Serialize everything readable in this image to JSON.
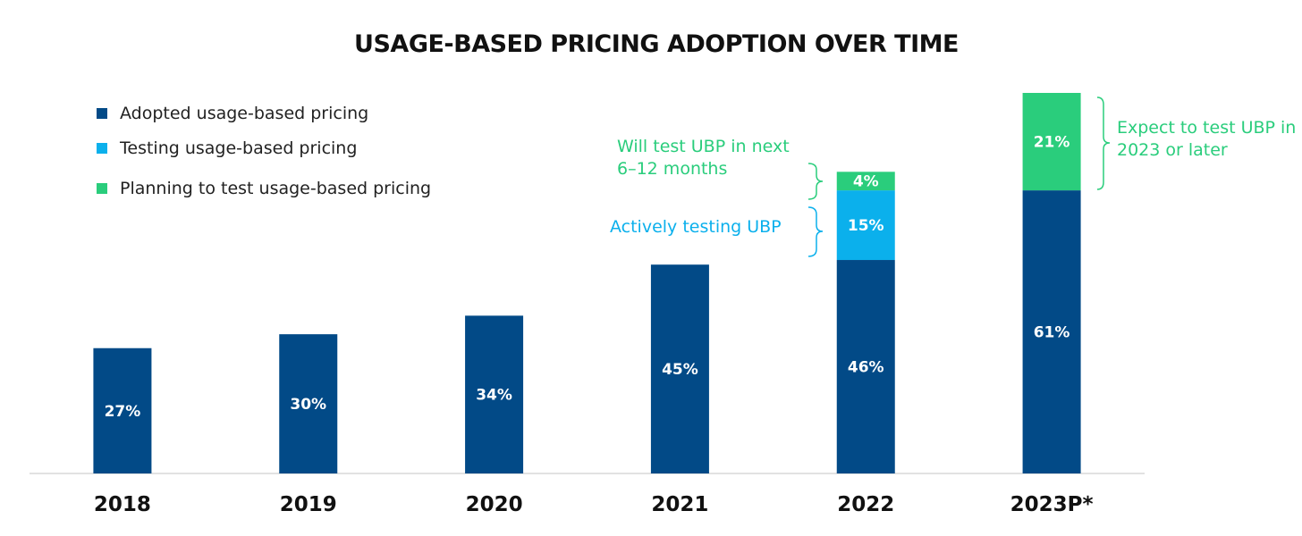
{
  "chart_data": {
    "type": "bar",
    "stacked": true,
    "title": "USAGE-BASED PRICING ADOPTION OVER TIME",
    "categories": [
      "2018",
      "2019",
      "2020",
      "2021",
      "2022",
      "2023P*"
    ],
    "series": [
      {
        "name": "Adopted usage-based pricing",
        "color": "#024a87",
        "values": [
          27,
          30,
          34,
          45,
          46,
          61
        ],
        "labels": [
          "27%",
          "30%",
          "34%",
          "45%",
          "46%",
          "61%"
        ]
      },
      {
        "name": "Testing usage-based pricing",
        "color": "#0bb0ec",
        "values": [
          null,
          null,
          null,
          null,
          15,
          null
        ],
        "labels": [
          null,
          null,
          null,
          null,
          "15%",
          null
        ]
      },
      {
        "name": "Planning to test usage-based pricing",
        "color": "#2acd7c",
        "values": [
          null,
          null,
          null,
          null,
          4,
          21
        ],
        "labels": [
          null,
          null,
          null,
          null,
          "4%",
          "21%"
        ]
      }
    ],
    "ylim": [
      0,
      82
    ],
    "legend_position": "top-left",
    "grid": false,
    "annotations": {
      "will_test_line1": "Will test UBP in next",
      "will_test_line2": "6–12 months",
      "actively_testing": "Actively testing UBP",
      "expect_line1": "Expect to test UBP in",
      "expect_line2": "2023 or later"
    }
  }
}
